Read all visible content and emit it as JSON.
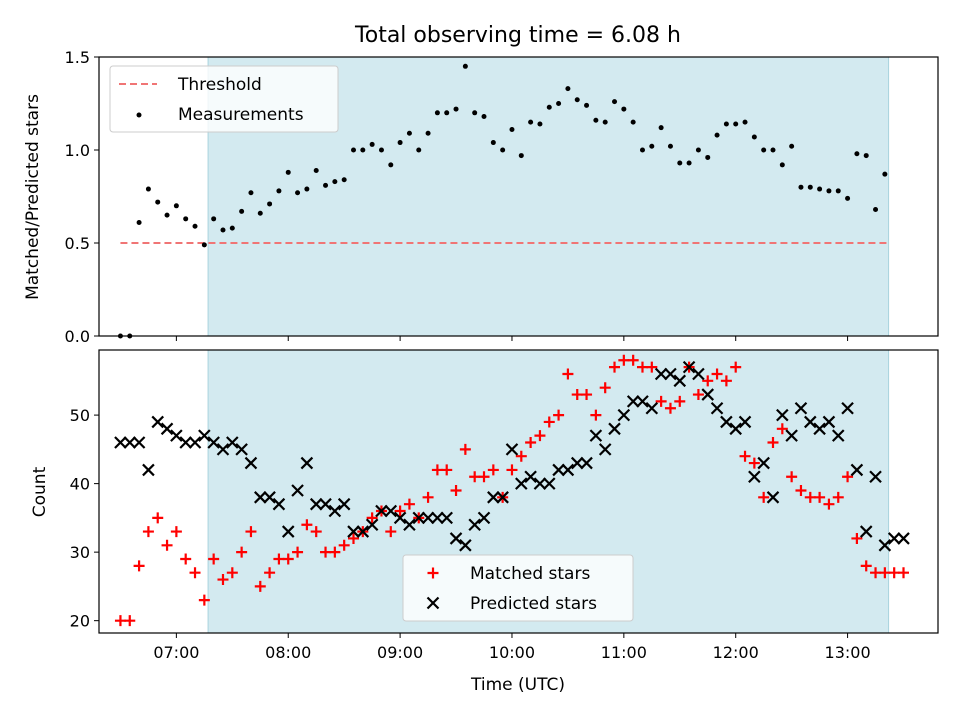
{
  "colors": {
    "shade": "#d3eaf0",
    "shade_edge": "#a9d3dd",
    "threshold": "#f07575",
    "measurement": "#000000",
    "matched": "#ff0000",
    "predicted": "#000000"
  },
  "chart_data": [
    {
      "type": "scatter",
      "title": "Total observing time = 6.08 h",
      "xlabel": "",
      "ylabel": "Matched/Predicted stars",
      "ylim": [
        0,
        1.5
      ],
      "yticks": [
        0,
        0.5,
        1.0,
        1.5
      ],
      "ytick_labels": [
        "0.0",
        "0.5",
        "1.0",
        "1.5"
      ],
      "shaded_span": [
        "07:17",
        "13:22"
      ],
      "legend_position": "upper left",
      "legend": [
        "Threshold",
        "Measurements"
      ],
      "threshold": {
        "name": "Threshold",
        "value": 0.5,
        "x": [
          "06:30",
          "13:22"
        ],
        "style": "dashed"
      },
      "series": [
        {
          "name": "Measurements",
          "x": [
            "06:30",
            "06:35",
            "06:40",
            "06:45",
            "06:50",
            "06:55",
            "07:00",
            "07:05",
            "07:10",
            "07:15",
            "07:20",
            "07:25",
            "07:30",
            "07:35",
            "07:40",
            "07:45",
            "07:50",
            "07:55",
            "08:00",
            "08:05",
            "08:10",
            "08:15",
            "08:20",
            "08:25",
            "08:30",
            "08:35",
            "08:40",
            "08:45",
            "08:50",
            "08:55",
            "09:00",
            "09:05",
            "09:10",
            "09:15",
            "09:20",
            "09:25",
            "09:30",
            "09:35",
            "09:40",
            "09:45",
            "09:50",
            "09:55",
            "10:00",
            "10:05",
            "10:10",
            "10:15",
            "10:20",
            "10:25",
            "10:30",
            "10:35",
            "10:40",
            "10:45",
            "10:50",
            "10:55",
            "11:00",
            "11:05",
            "11:10",
            "11:15",
            "11:20",
            "11:25",
            "11:30",
            "11:35",
            "11:40",
            "11:45",
            "11:50",
            "11:55",
            "12:00",
            "12:05",
            "12:10",
            "12:15",
            "12:20",
            "12:25",
            "12:30",
            "12:35",
            "12:40",
            "12:45",
            "12:50",
            "12:55",
            "13:00",
            "13:05",
            "13:10",
            "13:15",
            "13:20"
          ],
          "y": [
            0.0,
            0.0,
            0.61,
            0.79,
            0.72,
            0.65,
            0.7,
            0.63,
            0.59,
            0.49,
            0.63,
            0.57,
            0.58,
            0.67,
            0.77,
            0.66,
            0.71,
            0.78,
            0.88,
            0.77,
            0.79,
            0.89,
            0.81,
            0.83,
            0.84,
            1.0,
            1.0,
            1.03,
            1.0,
            0.92,
            1.04,
            1.09,
            1.0,
            1.09,
            1.2,
            1.2,
            1.22,
            1.45,
            1.2,
            1.18,
            1.04,
            1.0,
            1.11,
            0.97,
            1.15,
            1.14,
            1.23,
            1.25,
            1.33,
            1.27,
            1.24,
            1.16,
            1.15,
            1.26,
            1.22,
            1.15,
            1.0,
            1.02,
            1.12,
            1.02,
            0.93,
            0.93,
            1.0,
            0.96,
            1.08,
            1.14,
            1.14,
            1.15,
            1.07,
            1.0,
            1.0,
            0.92,
            1.02,
            0.8,
            0.8,
            0.79,
            0.78,
            0.78,
            0.74,
            0.98,
            0.97,
            0.68,
            0.87
          ]
        }
      ]
    },
    {
      "type": "scatter",
      "title": "",
      "xlabel": "Time (UTC)",
      "ylabel": "Count",
      "ylim": [
        18.2,
        59.5
      ],
      "yticks": [
        20,
        30,
        40,
        50
      ],
      "xticks": [
        "07:00",
        "08:00",
        "09:00",
        "10:00",
        "11:00",
        "12:00",
        "13:00"
      ],
      "shaded_span": [
        "07:17",
        "13:22"
      ],
      "legend_position": "lower center",
      "legend": [
        "Matched stars",
        "Predicted stars"
      ],
      "series": [
        {
          "name": "Matched stars",
          "x": [
            "06:30",
            "06:35",
            "06:40",
            "06:45",
            "06:50",
            "06:55",
            "07:00",
            "07:05",
            "07:10",
            "07:15",
            "07:20",
            "07:25",
            "07:30",
            "07:35",
            "07:40",
            "07:45",
            "07:50",
            "07:55",
            "08:00",
            "08:05",
            "08:10",
            "08:15",
            "08:20",
            "08:25",
            "08:30",
            "08:35",
            "08:40",
            "08:45",
            "08:50",
            "08:55",
            "09:00",
            "09:05",
            "09:10",
            "09:15",
            "09:20",
            "09:25",
            "09:30",
            "09:35",
            "09:40",
            "09:45",
            "09:50",
            "09:55",
            "10:00",
            "10:05",
            "10:10",
            "10:15",
            "10:20",
            "10:25",
            "10:30",
            "10:35",
            "10:40",
            "10:45",
            "10:50",
            "10:55",
            "11:00",
            "11:05",
            "11:10",
            "11:15",
            "11:20",
            "11:25",
            "11:30",
            "11:35",
            "11:40",
            "11:45",
            "11:50",
            "11:55",
            "12:00",
            "12:05",
            "12:10",
            "12:15",
            "12:20",
            "12:25",
            "12:30",
            "12:35",
            "12:40",
            "12:45",
            "12:50",
            "12:55",
            "13:00",
            "13:05",
            "13:10",
            "13:15",
            "13:20",
            "13:25",
            "13:30"
          ],
          "y": [
            20,
            20,
            28,
            33,
            35,
            31,
            33,
            29,
            27,
            23,
            29,
            26,
            27,
            30,
            33,
            25,
            27,
            29,
            29,
            30,
            34,
            33,
            30,
            30,
            31,
            32,
            33,
            35,
            36,
            33,
            36,
            37,
            35,
            38,
            42,
            42,
            39,
            45,
            41,
            41,
            42,
            38,
            42,
            44,
            46,
            47,
            49,
            50,
            56,
            53,
            53,
            50,
            54,
            57,
            58,
            58,
            57,
            57,
            52,
            51,
            52,
            57,
            53,
            55,
            56,
            55,
            57,
            44,
            43,
            38,
            46,
            48,
            41,
            39,
            38,
            38,
            37,
            38,
            41,
            32,
            28,
            27,
            27,
            27,
            27
          ]
        },
        {
          "name": "Predicted stars",
          "x": [
            "06:30",
            "06:35",
            "06:40",
            "06:45",
            "06:50",
            "06:55",
            "07:00",
            "07:05",
            "07:10",
            "07:15",
            "07:20",
            "07:25",
            "07:30",
            "07:35",
            "07:40",
            "07:45",
            "07:50",
            "07:55",
            "08:00",
            "08:05",
            "08:10",
            "08:15",
            "08:20",
            "08:25",
            "08:30",
            "08:35",
            "08:40",
            "08:45",
            "08:50",
            "08:55",
            "09:00",
            "09:05",
            "09:10",
            "09:15",
            "09:20",
            "09:25",
            "09:30",
            "09:35",
            "09:40",
            "09:45",
            "09:50",
            "09:55",
            "10:00",
            "10:05",
            "10:10",
            "10:15",
            "10:20",
            "10:25",
            "10:30",
            "10:35",
            "10:40",
            "10:45",
            "10:50",
            "10:55",
            "11:00",
            "11:05",
            "11:10",
            "11:15",
            "11:20",
            "11:25",
            "11:30",
            "11:35",
            "11:40",
            "11:45",
            "11:50",
            "11:55",
            "12:00",
            "12:05",
            "12:10",
            "12:15",
            "12:20",
            "12:25",
            "12:30",
            "12:35",
            "12:40",
            "12:45",
            "12:50",
            "12:55",
            "13:00",
            "13:05",
            "13:10",
            "13:15",
            "13:20",
            "13:25",
            "13:30"
          ],
          "y": [
            46,
            46,
            46,
            42,
            49,
            48,
            47,
            46,
            46,
            47,
            46,
            45,
            46,
            45,
            43,
            38,
            38,
            37,
            33,
            39,
            43,
            37,
            37,
            36,
            37,
            33,
            33,
            34,
            36,
            36,
            35,
            34,
            35,
            35,
            35,
            35,
            32,
            31,
            34,
            35,
            38,
            38,
            45,
            40,
            41,
            40,
            40,
            42,
            42,
            43,
            43,
            47,
            45,
            48,
            50,
            52,
            52,
            51,
            56,
            56,
            55,
            57,
            56,
            53,
            51,
            49,
            48,
            49,
            41,
            43,
            38,
            50,
            47,
            51,
            49,
            48,
            49,
            47,
            51,
            42,
            33,
            41,
            31,
            32,
            32
          ]
        }
      ]
    }
  ]
}
